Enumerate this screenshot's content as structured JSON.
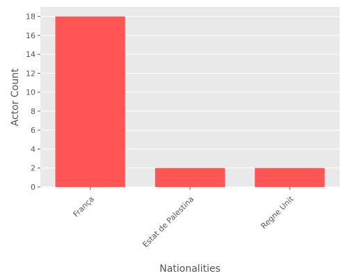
{
  "chart_data": {
    "type": "bar",
    "categories": [
      "França",
      "Estat de Palestina",
      "Regne Unit"
    ],
    "values": [
      18,
      2,
      2
    ],
    "title": "",
    "xlabel": "Nationalities",
    "ylabel": "Actor Count",
    "ylim": [
      0,
      19
    ],
    "yticks": [
      0,
      2,
      4,
      6,
      8,
      10,
      12,
      14,
      16,
      18
    ],
    "grid": true,
    "bar_color": "#ff5555",
    "plot_background": "#e9e9e9",
    "grid_color": "#ffffff"
  }
}
